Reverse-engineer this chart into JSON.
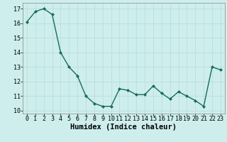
{
  "x": [
    0,
    1,
    2,
    3,
    4,
    5,
    6,
    7,
    8,
    9,
    10,
    11,
    12,
    13,
    14,
    15,
    16,
    17,
    18,
    19,
    20,
    21,
    22,
    23
  ],
  "y": [
    16.1,
    16.8,
    17.0,
    16.6,
    14.0,
    13.0,
    12.4,
    11.0,
    10.5,
    10.3,
    10.3,
    11.5,
    11.4,
    11.1,
    11.1,
    11.7,
    11.2,
    10.8,
    11.3,
    11.0,
    10.7,
    10.3,
    13.0,
    12.8
  ],
  "line_color": "#1a6b5a",
  "marker": "D",
  "marker_size": 2.0,
  "bg_color": "#cdeeed",
  "grid_color": "#b8dbd8",
  "xlabel": "Humidex (Indice chaleur)",
  "ylim": [
    9.8,
    17.4
  ],
  "xlim": [
    -0.5,
    23.5
  ],
  "yticks": [
    10,
    11,
    12,
    13,
    14,
    15,
    16,
    17
  ],
  "xticks": [
    0,
    1,
    2,
    3,
    4,
    5,
    6,
    7,
    8,
    9,
    10,
    11,
    12,
    13,
    14,
    15,
    16,
    17,
    18,
    19,
    20,
    21,
    22,
    23
  ],
  "tick_fontsize": 6.0,
  "xlabel_fontsize": 7.5,
  "linewidth": 1.0
}
